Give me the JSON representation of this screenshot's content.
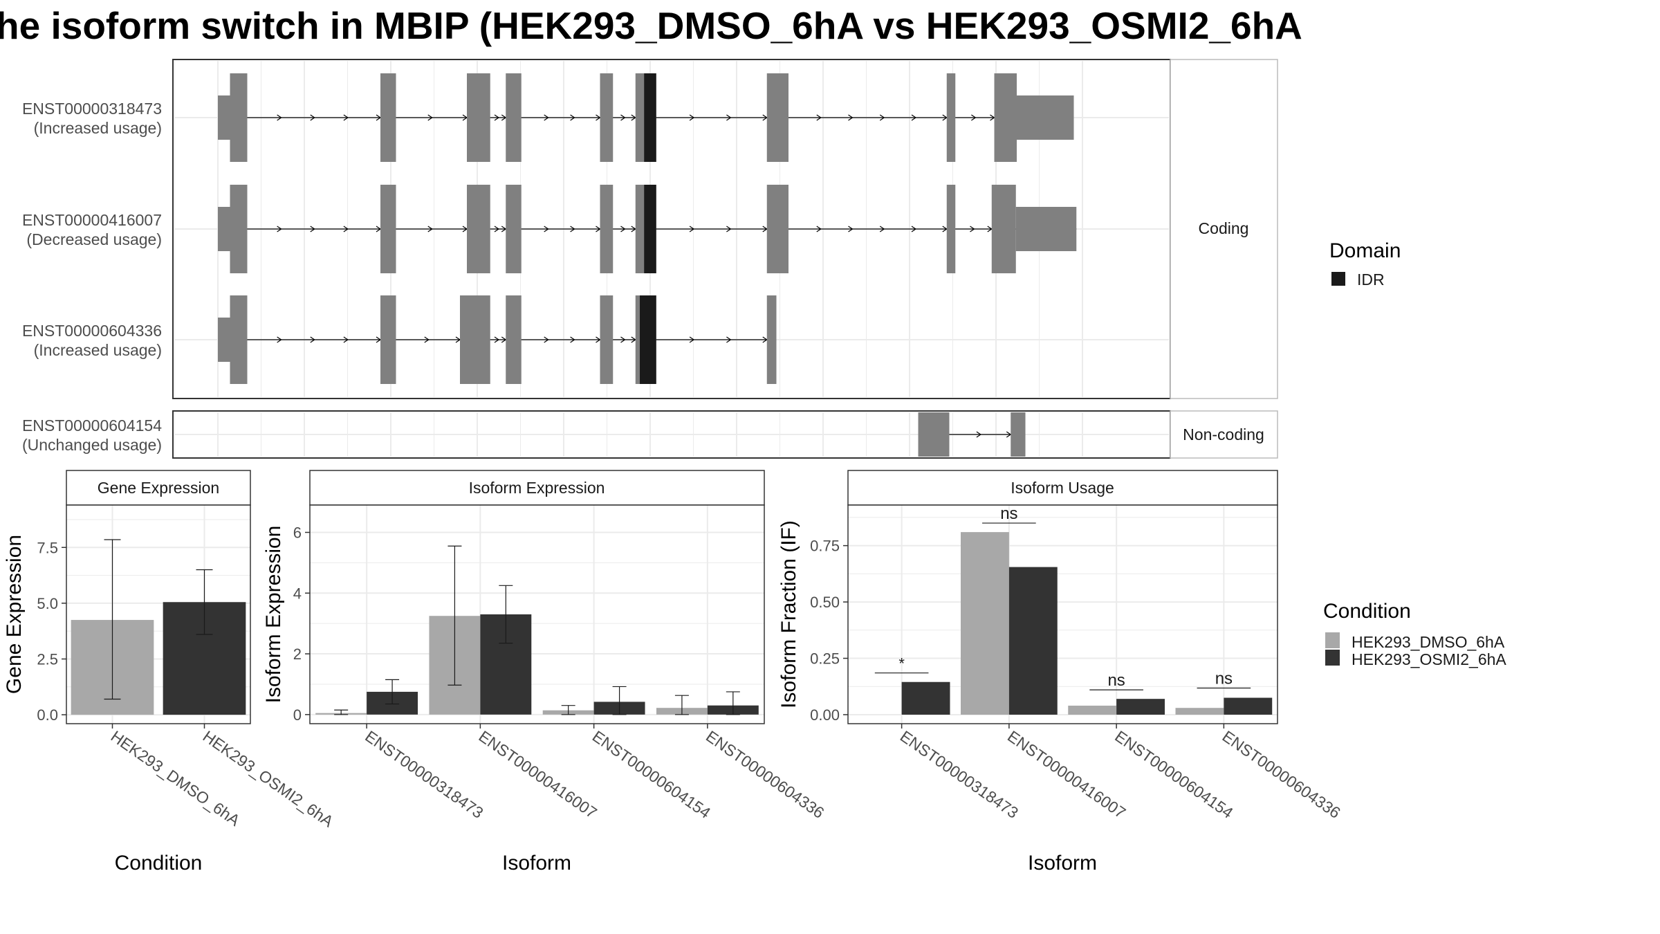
{
  "title": "he isoform switch in MBIP (HEK293_DMSO_6hA vs HEK293_OSMI2_6hA",
  "colors": {
    "exon": "#808080",
    "idr": "#1a1a1a",
    "dmso": "#a8a8a8",
    "osmi": "#333333",
    "grid": "#ebebeb",
    "panel_border": "#333333",
    "strip_border": "#bbbbbb"
  },
  "structure": {
    "coord_range": [
      0,
      100
    ],
    "facets": [
      {
        "label": "Coding",
        "transcripts": [
          {
            "id": "ENST00000318473",
            "usage": "(Increased usage)",
            "utr5": [
              0,
              1.4
            ],
            "utr3": [
              92.4,
              99
            ],
            "exons": [
              [
                1.4,
                3.4
              ],
              [
                18.8,
                20.6
              ],
              [
                28.8,
                31.5
              ],
              [
                33.3,
                35.1
              ],
              [
                44.2,
                45.7
              ],
              [
                48.3,
                50.7
              ],
              [
                63.5,
                66.0
              ],
              [
                84.3,
                85.3
              ],
              [
                89.8,
                92.4
              ]
            ],
            "idr": [
              [
                49.3,
                50.7
              ]
            ]
          },
          {
            "id": "ENST00000416007",
            "usage": "(Decreased usage)",
            "utr5": [
              0,
              1.4
            ],
            "utr3": [
              92.3,
              99.3
            ],
            "exons": [
              [
                1.4,
                3.4
              ],
              [
                18.8,
                20.6
              ],
              [
                28.8,
                31.5
              ],
              [
                33.3,
                35.1
              ],
              [
                44.2,
                45.7
              ],
              [
                48.3,
                50.7
              ],
              [
                63.5,
                66.0
              ],
              [
                84.3,
                85.3
              ],
              [
                89.5,
                92.3
              ]
            ],
            "idr": [
              [
                49.3,
                50.7
              ]
            ]
          },
          {
            "id": "ENST00000604336",
            "usage": "(Increased usage)",
            "utr5": [
              0,
              1.4
            ],
            "utr3": null,
            "exons": [
              [
                1.4,
                3.4
              ],
              [
                18.8,
                20.6
              ],
              [
                28.0,
                31.5
              ],
              [
                33.3,
                35.1
              ],
              [
                44.2,
                45.7
              ],
              [
                48.3,
                50.7
              ],
              [
                63.5,
                64.6
              ]
            ],
            "idr": [
              [
                48.8,
                50.7
              ]
            ]
          }
        ]
      },
      {
        "label": "Non-coding",
        "transcripts": [
          {
            "id": "ENST00000604154",
            "usage": "(Unchanged usage)",
            "utr5": null,
            "utr3": null,
            "exons": [
              [
                81.0,
                84.6
              ],
              [
                91.7,
                93.4
              ]
            ],
            "idr": []
          }
        ]
      }
    ],
    "legend": {
      "title": "Domain",
      "items": [
        {
          "label": "IDR"
        }
      ]
    }
  },
  "chart_data": [
    {
      "type": "bar",
      "strip": "Gene Expression",
      "xlabel": "Condition",
      "ylabel": "Gene Expression",
      "ylim": [
        -0.4,
        9.4
      ],
      "yticks": [
        0.0,
        2.5,
        5.0,
        7.5
      ],
      "ytick_labels": [
        "0.0",
        "2.5",
        "5.0",
        "7.5"
      ],
      "categories": [
        "HEK293_DMSO_6hA",
        "HEK293_OSMI2_6hA"
      ],
      "values": [
        4.25,
        5.05
      ],
      "err_low": [
        0.7,
        3.6
      ],
      "err_high": [
        7.85,
        6.5
      ]
    },
    {
      "type": "bar",
      "strip": "Isoform Expression",
      "xlabel": "Isoform",
      "ylabel": "Isoform Expression",
      "ylim": [
        -0.3,
        6.9
      ],
      "yticks": [
        0,
        2,
        4,
        6
      ],
      "ytick_labels": [
        "0",
        "2",
        "4",
        "6"
      ],
      "categories": [
        "ENST00000318473",
        "ENST00000416007",
        "ENST00000604154",
        "ENST00000604336"
      ],
      "series": [
        {
          "name": "HEK293_DMSO_6hA",
          "values": [
            0.05,
            3.25,
            0.14,
            0.22
          ],
          "err_low": [
            0.0,
            0.97,
            0.0,
            0.0
          ],
          "err_high": [
            0.15,
            5.55,
            0.3,
            0.63
          ]
        },
        {
          "name": "HEK293_OSMI2_6hA",
          "values": [
            0.75,
            3.3,
            0.42,
            0.3
          ],
          "err_low": [
            0.35,
            2.35,
            0.0,
            0.0
          ],
          "err_high": [
            1.15,
            4.25,
            0.92,
            0.75
          ]
        }
      ]
    },
    {
      "type": "bar",
      "strip": "Isoform Usage",
      "xlabel": "Isoform",
      "ylabel": "Isoform Fraction (IF)",
      "ylim": [
        -0.04,
        0.93
      ],
      "yticks": [
        0.0,
        0.25,
        0.5,
        0.75
      ],
      "ytick_labels": [
        "0.00",
        "0.25",
        "0.50",
        "0.75"
      ],
      "categories": [
        "ENST00000318473",
        "ENST00000416007",
        "ENST00000604154",
        "ENST00000604336"
      ],
      "series": [
        {
          "name": "HEK293_DMSO_6hA",
          "values": [
            0.0,
            0.81,
            0.04,
            0.03
          ]
        },
        {
          "name": "HEK293_OSMI2_6hA",
          "values": [
            0.145,
            0.655,
            0.07,
            0.075
          ]
        }
      ],
      "significance": [
        {
          "label": "*",
          "y": 0.185
        },
        {
          "label": "ns",
          "y": 0.85
        },
        {
          "label": "ns",
          "y": 0.11
        },
        {
          "label": "ns",
          "y": 0.118
        }
      ]
    }
  ],
  "condition_legend": {
    "title": "Condition",
    "items": [
      {
        "label": "HEK293_DMSO_6hA"
      },
      {
        "label": "HEK293_OSMI2_6hA"
      }
    ]
  }
}
